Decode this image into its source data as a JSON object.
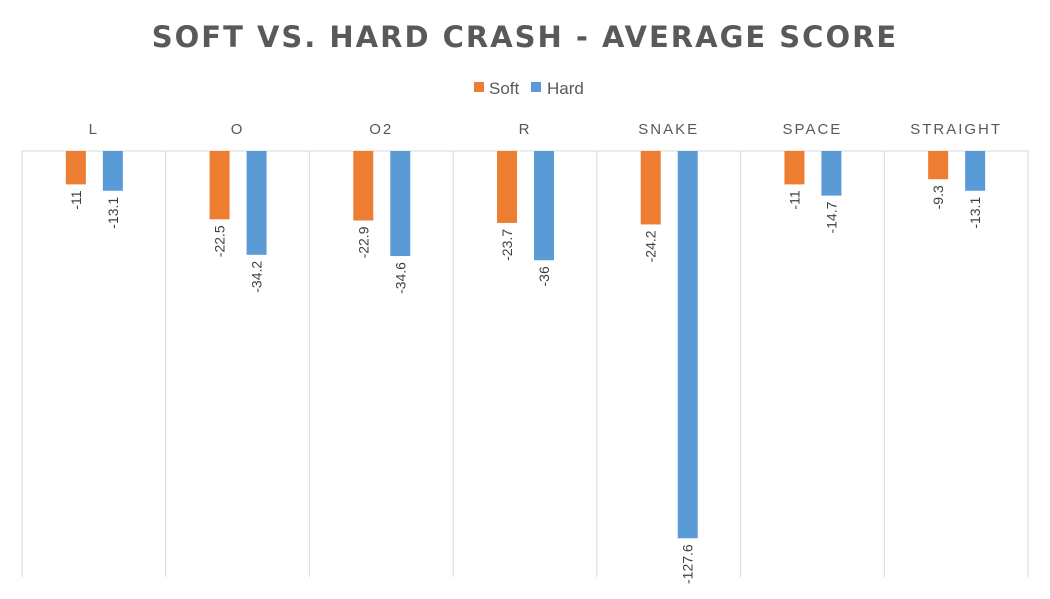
{
  "chart_data": {
    "type": "bar",
    "title": "SOFT VS. HARD CRASH - AVERAGE SCORE",
    "categories": [
      "L",
      "O",
      "O2",
      "R",
      "SNAKE",
      "SPACE",
      "STRAIGHT"
    ],
    "series": [
      {
        "name": "Soft",
        "color": "#ED7D31",
        "values": [
          -11,
          -22.5,
          -22.9,
          -23.7,
          -24.2,
          -11,
          -9.3
        ],
        "labels": [
          "-11",
          "-22.5",
          "-22.9",
          "-23.7",
          "-24.2",
          "-11",
          "-9.3"
        ]
      },
      {
        "name": "Hard",
        "color": "#5B9BD5",
        "values": [
          -13.1,
          -34.2,
          -34.6,
          -36,
          -127.6,
          -14.7,
          -13.1
        ],
        "labels": [
          "-13.1",
          "-34.2",
          "-34.6",
          "-36",
          "-127.6",
          "-14.7",
          "-13.1"
        ]
      }
    ],
    "category_axis_position": "top",
    "value_axis_visible": false,
    "ylim": [
      -127.6,
      0
    ],
    "gridlines": "vertical category separators",
    "legend_position": "top"
  }
}
